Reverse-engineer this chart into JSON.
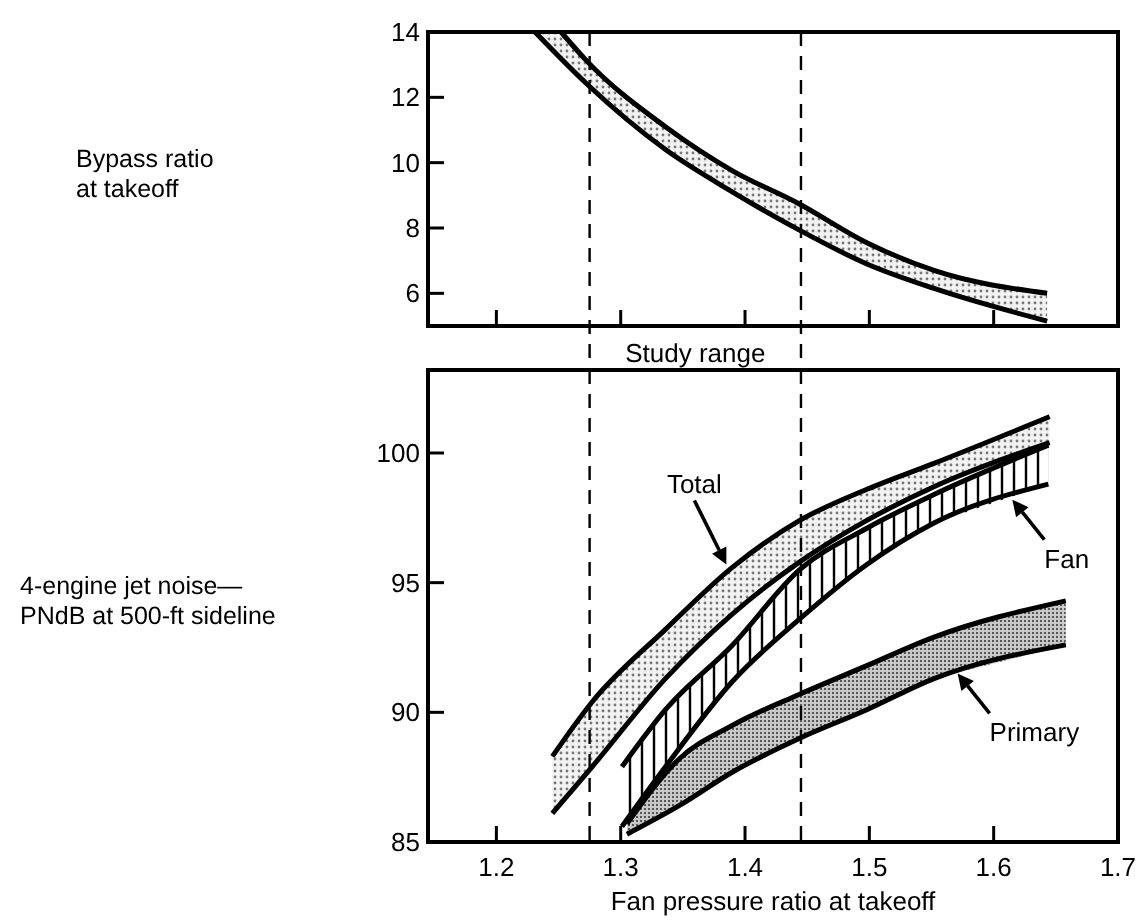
{
  "chart_data": [
    {
      "type": "line",
      "ylabel": "Bypass ratio\nat takeoff",
      "xlim": [
        1.145,
        1.7
      ],
      "xticks": [
        1.2,
        1.3,
        1.4,
        1.5,
        1.6,
        1.7
      ],
      "ylim": [
        5,
        14
      ],
      "yticks": [
        6,
        8,
        10,
        12,
        14
      ],
      "tick_labels": "y",
      "grid": false,
      "marker": "none",
      "ref_lines": [
        {
          "axis": "x",
          "value": 1.275,
          "line_style": "dashed"
        },
        {
          "axis": "x",
          "value": 1.445,
          "line_style": "dashed"
        }
      ],
      "annotations": [
        "Study range"
      ],
      "series": [
        {
          "color": "#000000",
          "x": [
            1.252,
            1.273,
            1.336,
            1.39,
            1.443,
            1.498,
            1.552,
            1.643
          ],
          "values": [
            14,
            13.1,
            11.1,
            9.75,
            8.75,
            7.55,
            6.7,
            6.0
          ]
        },
        {
          "color": "#000000",
          "x": [
            1.231,
            1.273,
            1.336,
            1.39,
            1.443,
            1.498,
            1.552,
            1.643
          ],
          "values": [
            14,
            12.4,
            10.4,
            9.1,
            7.95,
            6.9,
            6.15,
            5.15
          ]
        }
      ]
    },
    {
      "type": "line",
      "ylabel": "4-engine jet noise—\nPNdB at 500-ft sideline",
      "xlabel": "Fan pressure ratio at takeoff",
      "xlim": [
        1.145,
        1.7
      ],
      "xticks": [
        1.2,
        1.3,
        1.4,
        1.5,
        1.6,
        1.7
      ],
      "ylim": [
        85,
        103.2
      ],
      "yticks": [
        85,
        90,
        95,
        100
      ],
      "grid": false,
      "marker": "none",
      "ref_lines": [
        {
          "axis": "x",
          "value": 1.275,
          "line_style": "dashed"
        },
        {
          "axis": "x",
          "value": 1.445,
          "line_style": "dashed"
        }
      ],
      "annotations": [
        {
          "text": "Total",
          "x": 1.385,
          "y": 95.7
        },
        {
          "text": "Fan",
          "x": 1.615,
          "y": 98.2
        },
        {
          "text": "Primary",
          "x": 1.571,
          "y": 91.5
        }
      ],
      "series": [
        {
          "color": "#000000",
          "x": [
            1.245,
            1.277,
            1.336,
            1.39,
            1.444,
            1.498,
            1.552,
            1.645
          ],
          "values": [
            88.3,
            90.4,
            93.2,
            95.6,
            97.4,
            98.6,
            99.6,
            101.4
          ]
        },
        {
          "color": "#000000",
          "x": [
            1.245,
            1.277,
            1.336,
            1.39,
            1.444,
            1.498,
            1.552,
            1.645
          ],
          "values": [
            86.1,
            87.9,
            91.3,
            93.8,
            95.8,
            97.4,
            98.7,
            100.4
          ]
        },
        {
          "color": "#000000",
          "x": [
            1.301,
            1.336,
            1.39,
            1.444,
            1.498,
            1.552,
            1.644
          ],
          "values": [
            87.9,
            90.1,
            92.6,
            95.5,
            97.1,
            98.4,
            100.3
          ]
        },
        {
          "color": "#000000",
          "x": [
            1.301,
            1.336,
            1.39,
            1.444,
            1.498,
            1.552,
            1.644
          ],
          "values": [
            85.6,
            87.9,
            91.2,
            93.6,
            95.7,
            97.3,
            98.8
          ]
        },
        {
          "color": "#000000",
          "x": [
            1.305,
            1.347,
            1.39,
            1.444,
            1.498,
            1.552,
            1.658
          ],
          "values": [
            85.7,
            88.2,
            89.5,
            90.7,
            91.8,
            92.9,
            94.3
          ]
        },
        {
          "color": "#000000",
          "x": [
            1.305,
            1.347,
            1.39,
            1.444,
            1.498,
            1.552,
            1.658
          ],
          "values": [
            85.3,
            86.4,
            87.7,
            89.0,
            90.1,
            91.3,
            92.6
          ]
        }
      ]
    }
  ]
}
